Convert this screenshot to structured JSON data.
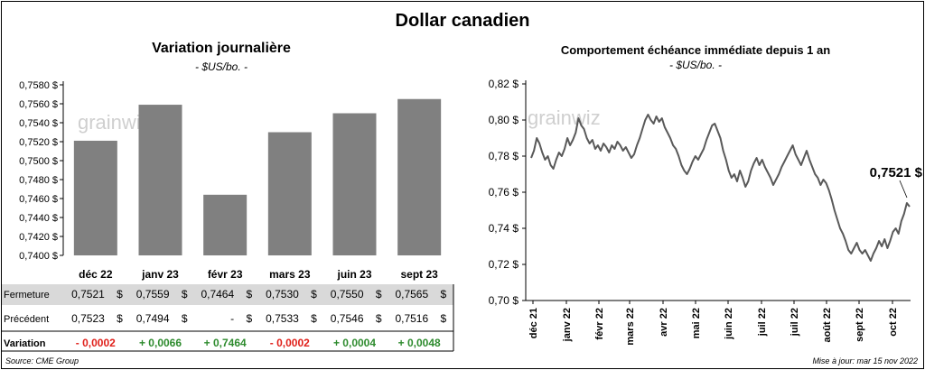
{
  "title": "Dollar canadien",
  "source": "Source: CME Group",
  "updated": "Mise à jour: mar 15 nov 2022",
  "watermark": "grainwiz",
  "colors": {
    "bar": "#808080",
    "line": "#595959",
    "positive": "#2e8b2e",
    "negative": "#e0201a",
    "row_shade": "#d9d9d9"
  },
  "chart_data": [
    {
      "type": "bar",
      "title": "Variation  journalière",
      "subtitle": "- $US/bo. -",
      "categories": [
        "déc 22",
        "janv 23",
        "févr 23",
        "mars 23",
        "juin 23",
        "sept 23"
      ],
      "values": [
        0.7521,
        0.7559,
        0.7464,
        0.753,
        0.755,
        0.7565
      ],
      "ylim": [
        0.74,
        0.758
      ],
      "yticks": [
        "0,7400 $",
        "0,7420 $",
        "0,7440 $",
        "0,7460 $",
        "0,7480 $",
        "0,7500 $",
        "0,7520 $",
        "0,7540 $",
        "0,7560 $",
        "0,7580 $"
      ],
      "table": {
        "rows": [
          {
            "label": "Fermeture",
            "cells": [
              "0,7521",
              "0,7559",
              "0,7464",
              "0,7530",
              "0,7550",
              "0,7565"
            ],
            "unit": "$"
          },
          {
            "label": "Précédent",
            "cells": [
              "0,7523",
              "0,7494",
              "-",
              "0,7533",
              "0,7546",
              "0,7516"
            ],
            "unit": "$"
          },
          {
            "label": "Variation",
            "cells": [
              "- 0,0002",
              "+ 0,0066",
              "+ 0,7464",
              "- 0,0002",
              "+ 0,0004",
              "+ 0,0048"
            ],
            "signs": [
              -1,
              1,
              1,
              -1,
              1,
              1
            ]
          }
        ]
      }
    },
    {
      "type": "line",
      "title": "Comportement échéance immédiate depuis 1 an",
      "subtitle": "- $US/bo. -",
      "ylim": [
        0.7,
        0.82
      ],
      "yticks": [
        "0,70 $",
        "0,72 $",
        "0,74 $",
        "0,76 $",
        "0,78 $",
        "0,80 $",
        "0,82 $"
      ],
      "xticks": [
        "déc 21",
        "janv 22",
        "févr 22",
        "mars 22",
        "avr 22",
        "mai 22",
        "juin 22",
        "juil 22",
        "juil 22",
        "août 22",
        "sept 22",
        "oct 22"
      ],
      "last_label": "0,7521 $",
      "y": [
        0.779,
        0.783,
        0.79,
        0.787,
        0.782,
        0.778,
        0.78,
        0.775,
        0.773,
        0.778,
        0.782,
        0.78,
        0.784,
        0.79,
        0.786,
        0.789,
        0.793,
        0.801,
        0.797,
        0.795,
        0.79,
        0.787,
        0.789,
        0.784,
        0.786,
        0.783,
        0.787,
        0.785,
        0.782,
        0.786,
        0.784,
        0.788,
        0.786,
        0.783,
        0.785,
        0.782,
        0.779,
        0.781,
        0.786,
        0.79,
        0.795,
        0.8,
        0.803,
        0.8,
        0.798,
        0.802,
        0.799,
        0.801,
        0.796,
        0.793,
        0.79,
        0.786,
        0.784,
        0.78,
        0.775,
        0.772,
        0.77,
        0.773,
        0.777,
        0.78,
        0.778,
        0.781,
        0.784,
        0.789,
        0.793,
        0.797,
        0.798,
        0.794,
        0.79,
        0.783,
        0.778,
        0.772,
        0.768,
        0.77,
        0.766,
        0.772,
        0.768,
        0.763,
        0.766,
        0.772,
        0.776,
        0.779,
        0.775,
        0.778,
        0.774,
        0.771,
        0.768,
        0.764,
        0.767,
        0.77,
        0.774,
        0.777,
        0.78,
        0.783,
        0.786,
        0.781,
        0.778,
        0.775,
        0.779,
        0.783,
        0.778,
        0.774,
        0.77,
        0.768,
        0.764,
        0.767,
        0.765,
        0.761,
        0.756,
        0.75,
        0.745,
        0.74,
        0.737,
        0.733,
        0.728,
        0.726,
        0.729,
        0.732,
        0.728,
        0.726,
        0.728,
        0.725,
        0.722,
        0.726,
        0.729,
        0.733,
        0.73,
        0.734,
        0.729,
        0.733,
        0.738,
        0.74,
        0.737,
        0.744,
        0.748,
        0.754,
        0.752
      ]
    }
  ]
}
